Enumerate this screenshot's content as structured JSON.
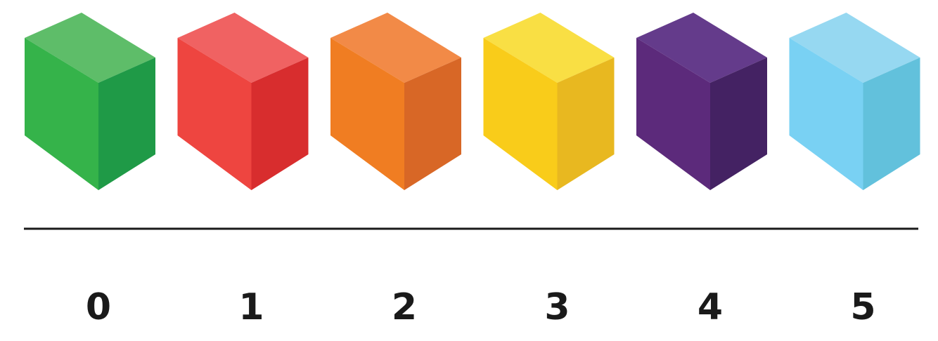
{
  "blocks": [
    {
      "label": "0",
      "colors": {
        "top": "#5ebd69",
        "front": "#35b34a",
        "side": "#1f9a47"
      }
    },
    {
      "label": "1",
      "colors": {
        "top": "#f06262",
        "front": "#ee4540",
        "side": "#d82d2e"
      }
    },
    {
      "label": "2",
      "colors": {
        "top": "#f28a47",
        "front": "#f07d22",
        "side": "#d86726"
      }
    },
    {
      "label": "3",
      "colors": {
        "top": "#f9df44",
        "front": "#f9cc1a",
        "side": "#e8b820"
      }
    },
    {
      "label": "4",
      "colors": {
        "top": "#643b8b",
        "front": "#5c2a7b",
        "side": "#442263"
      }
    },
    {
      "label": "5",
      "colors": {
        "top": "#96d8f1",
        "front": "#79d1f3",
        "side": "#62c1dc"
      }
    }
  ],
  "axis_line_color": "#1a1a1a",
  "label_color": "#1a1a1a"
}
